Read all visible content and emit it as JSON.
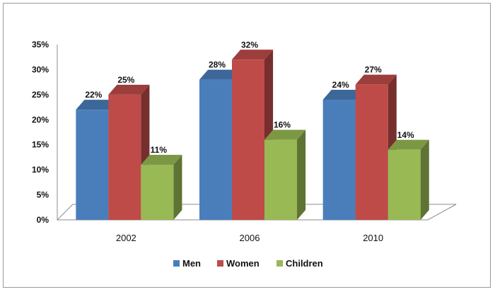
{
  "chart_data": {
    "type": "bar",
    "categories": [
      "2002",
      "2006",
      "2010"
    ],
    "series": [
      {
        "name": "Men",
        "values": [
          22,
          28,
          24
        ],
        "color": "#4a7ebb"
      },
      {
        "name": "Women",
        "values": [
          25,
          32,
          27
        ],
        "color": "#be4b48"
      },
      {
        "name": "Children",
        "values": [
          11,
          16,
          14
        ],
        "color": "#98b954"
      }
    ],
    "value_labels": [
      [
        "22%",
        "28%",
        "24%"
      ],
      [
        "25%",
        "32%",
        "27%"
      ],
      [
        "11%",
        "16%",
        "14%"
      ]
    ],
    "y_ticks": [
      "0%",
      "5%",
      "10%",
      "15%",
      "20%",
      "25%",
      "30%",
      "35%"
    ],
    "ylim": [
      0,
      35
    ],
    "title": "",
    "xlabel": "",
    "ylabel": "",
    "legend_position": "bottom",
    "grid": false,
    "style": "3d-clustered-column"
  }
}
